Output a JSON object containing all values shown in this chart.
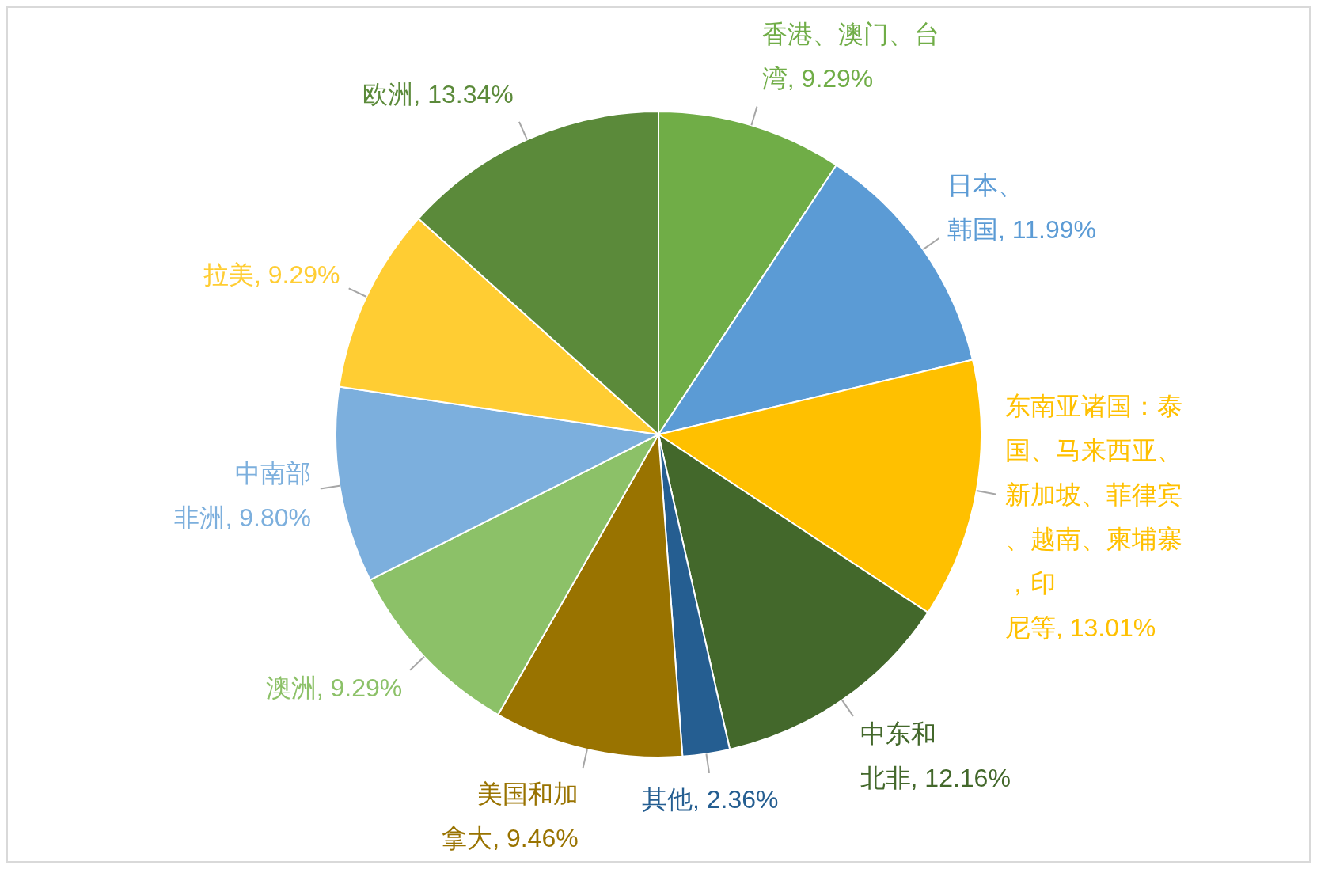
{
  "chart_data": {
    "type": "pie",
    "categories": [
      "香港、澳门、台湾",
      "日本、韩国",
      "东南亚诸国：泰国、马来西亚、新加坡、菲律宾、越南、柬埔寨，印尼等",
      "中东和北非",
      "其他",
      "美国和加拿大",
      "澳洲",
      "中南部非洲",
      "拉美",
      "欧洲"
    ],
    "values": [
      9.29,
      11.99,
      13.01,
      12.16,
      2.36,
      9.46,
      9.29,
      9.8,
      9.29,
      13.34
    ],
    "colors": [
      "#70ad47",
      "#5b9bd5",
      "#ffc000",
      "#43682b",
      "#255e91",
      "#997300",
      "#8cc168",
      "#7cafdd",
      "#ffcd33",
      "#5b8a3a"
    ],
    "value_labels": [
      "9.29%",
      "11.99%",
      "13.01%",
      "12.16%",
      "2.36%",
      "9.46%",
      "9.29%",
      "9.80%",
      "9.29%",
      "13.34%"
    ],
    "legend": false
  }
}
